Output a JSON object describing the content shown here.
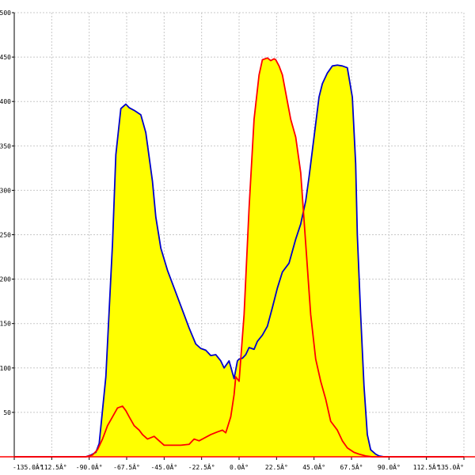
{
  "chart_data": {
    "type": "area",
    "title": "",
    "xlabel": "",
    "ylabel": "",
    "xlim": [
      -135,
      135
    ],
    "ylim": [
      0,
      500
    ],
    "grid": true,
    "x_ticks": [
      -135,
      -112.5,
      -90,
      -67.5,
      -45,
      -22.5,
      0,
      22.5,
      45,
      67.5,
      90,
      112.5,
      135
    ],
    "x_tick_labels": [
      "-135.0Â°",
      "-112.5Â°",
      "-90.0Â°",
      "-67.5Â°",
      "-45.0Â°",
      "-22.5Â°",
      "0.0Â°",
      "22.5Â°",
      "45.0Â°",
      "67.5Â°",
      "90.0Â°",
      "112.5Â°",
      "135.0Â°"
    ],
    "y_ticks": [
      0,
      50,
      100,
      150,
      200,
      250,
      300,
      350,
      400,
      450,
      500
    ],
    "y_tick_labels": [
      "0",
      "50",
      "100",
      "150",
      "200",
      "250",
      "300",
      "350",
      "400",
      "450",
      "500"
    ],
    "fill_color": "#ffff00",
    "series": [
      {
        "color": "#0000cc",
        "x": [
          -135,
          -92,
          -89,
          -86,
          -84,
          -80,
          -76,
          -74,
          -71,
          -68,
          -66,
          -63,
          -59,
          -56,
          -52,
          -50,
          -47,
          -43,
          -39,
          -34,
          -30,
          -26,
          -23,
          -20,
          -17,
          -14,
          -11,
          -9,
          -6,
          -3,
          -1,
          0,
          2,
          4,
          6,
          9,
          11,
          14,
          17,
          20,
          23,
          26,
          30,
          34,
          37,
          40,
          42,
          45,
          48,
          50,
          53,
          56,
          59,
          62,
          65,
          68,
          70,
          71,
          73,
          75,
          77,
          79,
          82,
          84,
          87,
          91,
          135
        ],
        "y": [
          0,
          0,
          2,
          5,
          15,
          90,
          240,
          340,
          392,
          397,
          393,
          390,
          385,
          365,
          310,
          270,
          235,
          210,
          190,
          165,
          145,
          127,
          122,
          120,
          114,
          115,
          108,
          100,
          108,
          88,
          108,
          110,
          111,
          115,
          123,
          121,
          130,
          137,
          147,
          168,
          190,
          208,
          218,
          245,
          262,
          288,
          315,
          360,
          405,
          420,
          432,
          440,
          441,
          440,
          438,
          405,
          330,
          250,
          160,
          80,
          25,
          8,
          3,
          1,
          0,
          0,
          0
        ]
      },
      {
        "color": "#ff0000",
        "x": [
          -135,
          -92,
          -88,
          -85,
          -82,
          -79,
          -76,
          -73,
          -70,
          -68,
          -66,
          -63,
          -60,
          -58,
          -55,
          -51,
          -48,
          -45,
          -40,
          -35,
          -30,
          -27,
          -24,
          -20,
          -17,
          -13,
          -10,
          -8,
          -5,
          -3,
          -2,
          0,
          3,
          6,
          9,
          12,
          14,
          17,
          19,
          21,
          22,
          24,
          26,
          28,
          31,
          34,
          37,
          40,
          43,
          46,
          49,
          52,
          55,
          59,
          62,
          65,
          69,
          72,
          76,
          80,
          84,
          88,
          91,
          135
        ],
        "y": [
          0,
          0,
          2,
          8,
          20,
          35,
          45,
          55,
          57,
          52,
          45,
          35,
          30,
          25,
          20,
          23,
          18,
          13,
          13,
          13,
          14,
          20,
          18,
          22,
          25,
          28,
          30,
          27,
          45,
          70,
          90,
          85,
          160,
          280,
          380,
          430,
          447,
          449,
          446,
          448,
          447,
          440,
          430,
          410,
          380,
          360,
          320,
          240,
          160,
          110,
          85,
          65,
          40,
          30,
          18,
          10,
          5,
          3,
          1,
          0,
          0,
          0,
          0,
          0
        ]
      }
    ]
  }
}
